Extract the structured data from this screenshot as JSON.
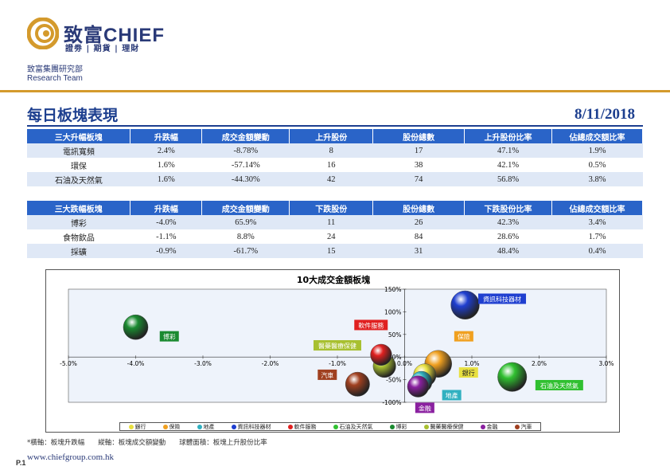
{
  "header": {
    "brand": "致富CHIEF",
    "brand_sub": "證劵 | 期貨 | 理財",
    "dept": "致富集團研究部",
    "team": "Research Team",
    "colors": {
      "brand": "#2a3a78",
      "accent": "#d49a2c"
    }
  },
  "page": {
    "title": "每日板塊表現",
    "date": "8/11/2018"
  },
  "gainers": {
    "headers": [
      "三大升幅板塊",
      "升跌幅",
      "成交金額變動",
      "上升股份",
      "股份總數",
      "上升股份比率",
      "佔總成交額比率"
    ],
    "rows": [
      [
        "電訊寬頻",
        "2.4%",
        "-8.78%",
        "8",
        "17",
        "47.1%",
        "1.9%"
      ],
      [
        "環保",
        "1.6%",
        "-57.14%",
        "16",
        "38",
        "42.1%",
        "0.5%"
      ],
      [
        "石油及天然氣",
        "1.6%",
        "-44.30%",
        "42",
        "74",
        "56.8%",
        "3.8%"
      ]
    ]
  },
  "losers": {
    "headers": [
      "三大跌幅板塊",
      "升跌幅",
      "成交金額變動",
      "下跌股份",
      "股份總數",
      "下跌股份比率",
      "佔總成交額比率"
    ],
    "rows": [
      [
        "博彩",
        "-4.0%",
        "65.9%",
        "11",
        "26",
        "42.3%",
        "3.4%"
      ],
      [
        "食物飲品",
        "-1.1%",
        "8.8%",
        "24",
        "84",
        "28.6%",
        "1.7%"
      ],
      [
        "採礦",
        "-0.9%",
        "-61.7%",
        "15",
        "31",
        "48.4%",
        "0.4%"
      ]
    ]
  },
  "chart_data": {
    "type": "scatter",
    "title": "10大成交金額板塊",
    "x_ticks": [
      "-5.0%",
      "-4.0%",
      "-3.0%",
      "-2.0%",
      "-1.0%",
      "0.0%",
      "1.0%",
      "2.0%",
      "3.0%"
    ],
    "y_ticks": [
      "150%",
      "100%",
      "50%",
      "0%",
      "-50%",
      "-100%"
    ],
    "xlim": [
      -5,
      3
    ],
    "ylim": [
      -100,
      150
    ],
    "series": [
      {
        "name": "銀行",
        "x": 0.3,
        "y": -40,
        "size": 0.35,
        "color": "#e8e040"
      },
      {
        "name": "保險",
        "x": 0.5,
        "y": -15,
        "size": 0.5,
        "color": "#f0a020"
      },
      {
        "name": "地產",
        "x": 0.25,
        "y": -55,
        "size": 0.3,
        "color": "#30b0c0"
      },
      {
        "name": "資訊科技器材",
        "x": 0.9,
        "y": 115,
        "size": 0.55,
        "color": "#1f3fd0"
      },
      {
        "name": "軟件服務",
        "x": -0.35,
        "y": 5,
        "size": 0.3,
        "color": "#e02020"
      },
      {
        "name": "石油及天然氣",
        "x": 1.6,
        "y": -44,
        "size": 0.57,
        "color": "#30c030"
      },
      {
        "name": "博彩",
        "x": -4.0,
        "y": 66,
        "size": 0.42,
        "color": "#1a8a30"
      },
      {
        "name": "醫藥醫療保健",
        "x": -0.3,
        "y": -20,
        "size": 0.35,
        "color": "#a8c030"
      },
      {
        "name": "金融",
        "x": 0.2,
        "y": -65,
        "size": 0.3,
        "color": "#8a20a0"
      },
      {
        "name": "汽車",
        "x": -0.7,
        "y": -60,
        "size": 0.4,
        "color": "#a04020"
      }
    ],
    "labels": [
      {
        "text": "資訊科技器材",
        "x": 1.45,
        "y": 128,
        "bg": "#1f3fd0",
        "fg": "#fff"
      },
      {
        "text": "博彩",
        "x": -3.5,
        "y": 45,
        "bg": "#1a8a30",
        "fg": "#fff"
      },
      {
        "text": "軟件服務",
        "x": -0.5,
        "y": 70,
        "bg": "#e02020",
        "fg": "#fff"
      },
      {
        "text": "保險",
        "x": 0.88,
        "y": 45,
        "bg": "#f0a020",
        "fg": "#fff"
      },
      {
        "text": "醫藥醫療保健",
        "x": -1.0,
        "y": 25,
        "bg": "#a8c030",
        "fg": "#fff"
      },
      {
        "text": "汽車",
        "x": -1.15,
        "y": -40,
        "bg": "#a04020",
        "fg": "#fff"
      },
      {
        "text": "銀行",
        "x": 0.95,
        "y": -35,
        "bg": "#e8e040",
        "fg": "#222"
      },
      {
        "text": "地產",
        "x": 0.7,
        "y": -85,
        "bg": "#30b0c0",
        "fg": "#fff"
      },
      {
        "text": "石油及天然氣",
        "x": 2.3,
        "y": -63,
        "bg": "#30c030",
        "fg": "#fff"
      },
      {
        "text": "金融",
        "x": 0.3,
        "y": -113,
        "bg": "#8a20a0",
        "fg": "#fff"
      }
    ]
  },
  "footer": {
    "note": "*橫軸：板塊升跌幅　　縱軸：板塊成交額變動　　球體面積：板塊上升股份比率",
    "page": "P.1",
    "web": "www.chiefgroup.com.hk"
  }
}
